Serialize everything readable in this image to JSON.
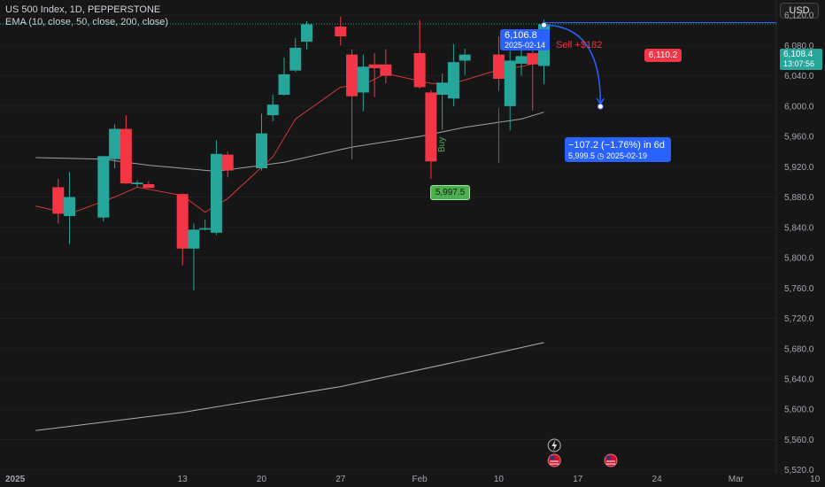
{
  "header": {
    "title": "US 500 Index, 1D, PEPPERSTONE",
    "indicators": "EMA (10, close, 50, close, 200, close)"
  },
  "currency_button": "USD",
  "colors": {
    "up": "#26a69a",
    "down": "#f23645",
    "bg": "#161616",
    "ema10": "#e63c3c",
    "ema50": "#cfcfcf",
    "ema200": "#e2e2e2",
    "accent": "#2962ff",
    "buy": "#4caf50"
  },
  "chart_data": {
    "type": "candlestick",
    "symbol": "US 500 Index",
    "interval": "1D",
    "ylim": [
      5515,
      6140
    ],
    "y_ticks": [
      "6,120.0",
      "6,080.0",
      "6,040.0",
      "6,000.0",
      "5,960.0",
      "5,920.0",
      "5,880.0",
      "5,840.0",
      "5,800.0",
      "5,760.0",
      "5,720.0",
      "5,680.0",
      "5,640.0",
      "5,600.0",
      "5,560.0",
      "5,520.0"
    ],
    "x_ticks": [
      {
        "label": "2025",
        "date": "2025-01-01"
      },
      {
        "label": "13",
        "date": "2025-01-13"
      },
      {
        "label": "20",
        "date": "2025-01-20"
      },
      {
        "label": "27",
        "date": "2025-01-27"
      },
      {
        "label": "Feb",
        "date": "2025-02-03"
      },
      {
        "label": "10",
        "date": "2025-02-10"
      },
      {
        "label": "17",
        "date": "2025-02-17"
      },
      {
        "label": "24",
        "date": "2025-02-24"
      },
      {
        "label": "Mar",
        "date": "2025-03-03"
      },
      {
        "label": "10",
        "date": "2025-03-10"
      }
    ],
    "candles": [
      {
        "date": "2025-01-02",
        "open": 5893,
        "high": 5904,
        "low": 5845,
        "close": 5858
      },
      {
        "date": "2025-01-03",
        "open": 5855,
        "high": 5913,
        "low": 5818,
        "close": 5880
      },
      {
        "date": "2025-01-06",
        "open": 5853,
        "high": 5932,
        "low": 5848,
        "close": 5934
      },
      {
        "date": "2025-01-07",
        "open": 5930,
        "high": 5976,
        "low": 5918,
        "close": 5970
      },
      {
        "date": "2025-01-08",
        "open": 5970,
        "high": 5988,
        "low": 5897,
        "close": 5898
      },
      {
        "date": "2025-01-09",
        "open": 5897,
        "high": 5902,
        "low": 5893,
        "close": 5899
      },
      {
        "date": "2025-01-10",
        "open": 5897,
        "high": 5901,
        "low": 5893,
        "close": 5892
      },
      {
        "date": "2025-01-13",
        "open": 5884,
        "high": 5885,
        "low": 5790,
        "close": 5812
      },
      {
        "date": "2025-01-14",
        "open": 5812,
        "high": 5845,
        "low": 5757,
        "close": 5837
      },
      {
        "date": "2025-01-15",
        "open": 5837,
        "high": 5850,
        "low": 5836,
        "close": 5839
      },
      {
        "date": "2025-01-16",
        "open": 5833,
        "high": 5955,
        "low": 5830,
        "close": 5937
      },
      {
        "date": "2025-01-17",
        "open": 5936,
        "high": 5940,
        "low": 5906,
        "close": 5915
      },
      {
        "date": "2025-01-20",
        "open": 5918,
        "high": 5990,
        "low": 5915,
        "close": 5964
      },
      {
        "date": "2025-01-21",
        "open": 5988,
        "high": 6015,
        "low": 5980,
        "close": 6002
      },
      {
        "date": "2025-01-22",
        "open": 6015,
        "high": 6064,
        "low": 6014,
        "close": 6042
      },
      {
        "date": "2025-01-23",
        "open": 6047,
        "high": 6090,
        "low": 6045,
        "close": 6077
      },
      {
        "date": "2025-01-24",
        "open": 6085,
        "high": 6112,
        "low": 6075,
        "close": 6108
      },
      {
        "date": "2025-01-27",
        "open": 6105,
        "high": 6118,
        "low": 6080,
        "close": 6092
      },
      {
        "date": "2025-01-28",
        "open": 6068,
        "high": 6075,
        "low": 5930,
        "close": 6013
      },
      {
        "date": "2025-01-29",
        "open": 6018,
        "high": 6068,
        "low": 5993,
        "close": 6052
      },
      {
        "date": "2025-01-30",
        "open": 6055,
        "high": 6070,
        "low": 6012,
        "close": 6050
      },
      {
        "date": "2025-01-31",
        "open": 6055,
        "high": 6075,
        "low": 6030,
        "close": 6040
      },
      {
        "date": "2025-02-03",
        "open": 6070,
        "high": 6114,
        "low": 6023,
        "close": 6025
      },
      {
        "date": "2025-02-04",
        "open": 6018,
        "high": 6021,
        "low": 5904,
        "close": 5927
      },
      {
        "date": "2025-02-05",
        "open": 6015,
        "high": 6043,
        "low": 5969,
        "close": 6031
      },
      {
        "date": "2025-02-06",
        "open": 6010,
        "high": 6082,
        "low": 6000,
        "close": 6058
      },
      {
        "date": "2025-02-07",
        "open": 6060,
        "high": 6076,
        "low": 6041,
        "close": 6068
      },
      {
        "date": "2025-02-10",
        "open": 6068,
        "high": 6092,
        "low": 6020,
        "close": 6036
      },
      {
        "date": "2025-02-11",
        "open": 6000,
        "high": 6073,
        "low": 5968,
        "close": 6060
      },
      {
        "date": "2025-02-12",
        "open": 6056,
        "high": 6075,
        "low": 6040,
        "close": 6066
      },
      {
        "date": "2025-02-13",
        "open": 6070,
        "high": 6075,
        "low": 5994,
        "close": 6055
      },
      {
        "date": "2025-02-14",
        "open": 6053,
        "high": 6114,
        "low": 6029,
        "close": 6108
      }
    ],
    "series": [
      {
        "name": "EMA 10",
        "values": [
          {
            "date": "2024-12-31",
            "v": 5868
          },
          {
            "date": "2025-01-03",
            "v": 5858
          },
          {
            "date": "2025-01-07",
            "v": 5880
          },
          {
            "date": "2025-01-09",
            "v": 5893
          },
          {
            "date": "2025-01-13",
            "v": 5882
          },
          {
            "date": "2025-01-15",
            "v": 5860
          },
          {
            "date": "2025-01-17",
            "v": 5878
          },
          {
            "date": "2025-01-21",
            "v": 5933
          },
          {
            "date": "2025-01-23",
            "v": 5983
          },
          {
            "date": "2025-01-27",
            "v": 6025
          },
          {
            "date": "2025-01-29",
            "v": 6028
          },
          {
            "date": "2025-01-31",
            "v": 6043
          },
          {
            "date": "2025-02-04",
            "v": 6030
          },
          {
            "date": "2025-02-06",
            "v": 6030
          },
          {
            "date": "2025-02-10",
            "v": 6048
          },
          {
            "date": "2025-02-12",
            "v": 6052
          },
          {
            "date": "2025-02-14",
            "v": 6060
          }
        ]
      },
      {
        "name": "EMA 50",
        "values": [
          {
            "date": "2024-12-31",
            "v": 5932
          },
          {
            "date": "2025-01-06",
            "v": 5930
          },
          {
            "date": "2025-01-10",
            "v": 5922
          },
          {
            "date": "2025-01-16",
            "v": 5914
          },
          {
            "date": "2025-01-22",
            "v": 5926
          },
          {
            "date": "2025-01-28",
            "v": 5946
          },
          {
            "date": "2025-02-03",
            "v": 5960
          },
          {
            "date": "2025-02-07",
            "v": 5972
          },
          {
            "date": "2025-02-12",
            "v": 5983
          },
          {
            "date": "2025-02-14",
            "v": 5992
          }
        ]
      },
      {
        "name": "EMA 200",
        "values": [
          {
            "date": "2024-12-31",
            "v": 5572
          },
          {
            "date": "2025-01-13",
            "v": 5596
          },
          {
            "date": "2025-01-27",
            "v": 5630
          },
          {
            "date": "2025-02-07",
            "v": 5665
          },
          {
            "date": "2025-02-14",
            "v": 5688
          }
        ]
      }
    ],
    "last_price": {
      "value": "6,108.4",
      "countdown": "13:07:56"
    },
    "sell_label": "6,110.2",
    "buy_label": "5,997.5",
    "buy_text": "Buy",
    "annotations": {
      "start_point": {
        "price": "6,106.8",
        "date": "2025-02-14"
      },
      "sell_note": "Sell +$182",
      "projection": {
        "change": "−107.2 (−1.76%) in 6d",
        "target": "5,999.5",
        "date": "2025-02-19",
        "target_date": "2025-02-19",
        "target_value": 5999.5,
        "start_value": 6106.8
      }
    },
    "event_icons": [
      "lightning-icon",
      "us-flag-icon",
      "us-flag-icon"
    ]
  }
}
